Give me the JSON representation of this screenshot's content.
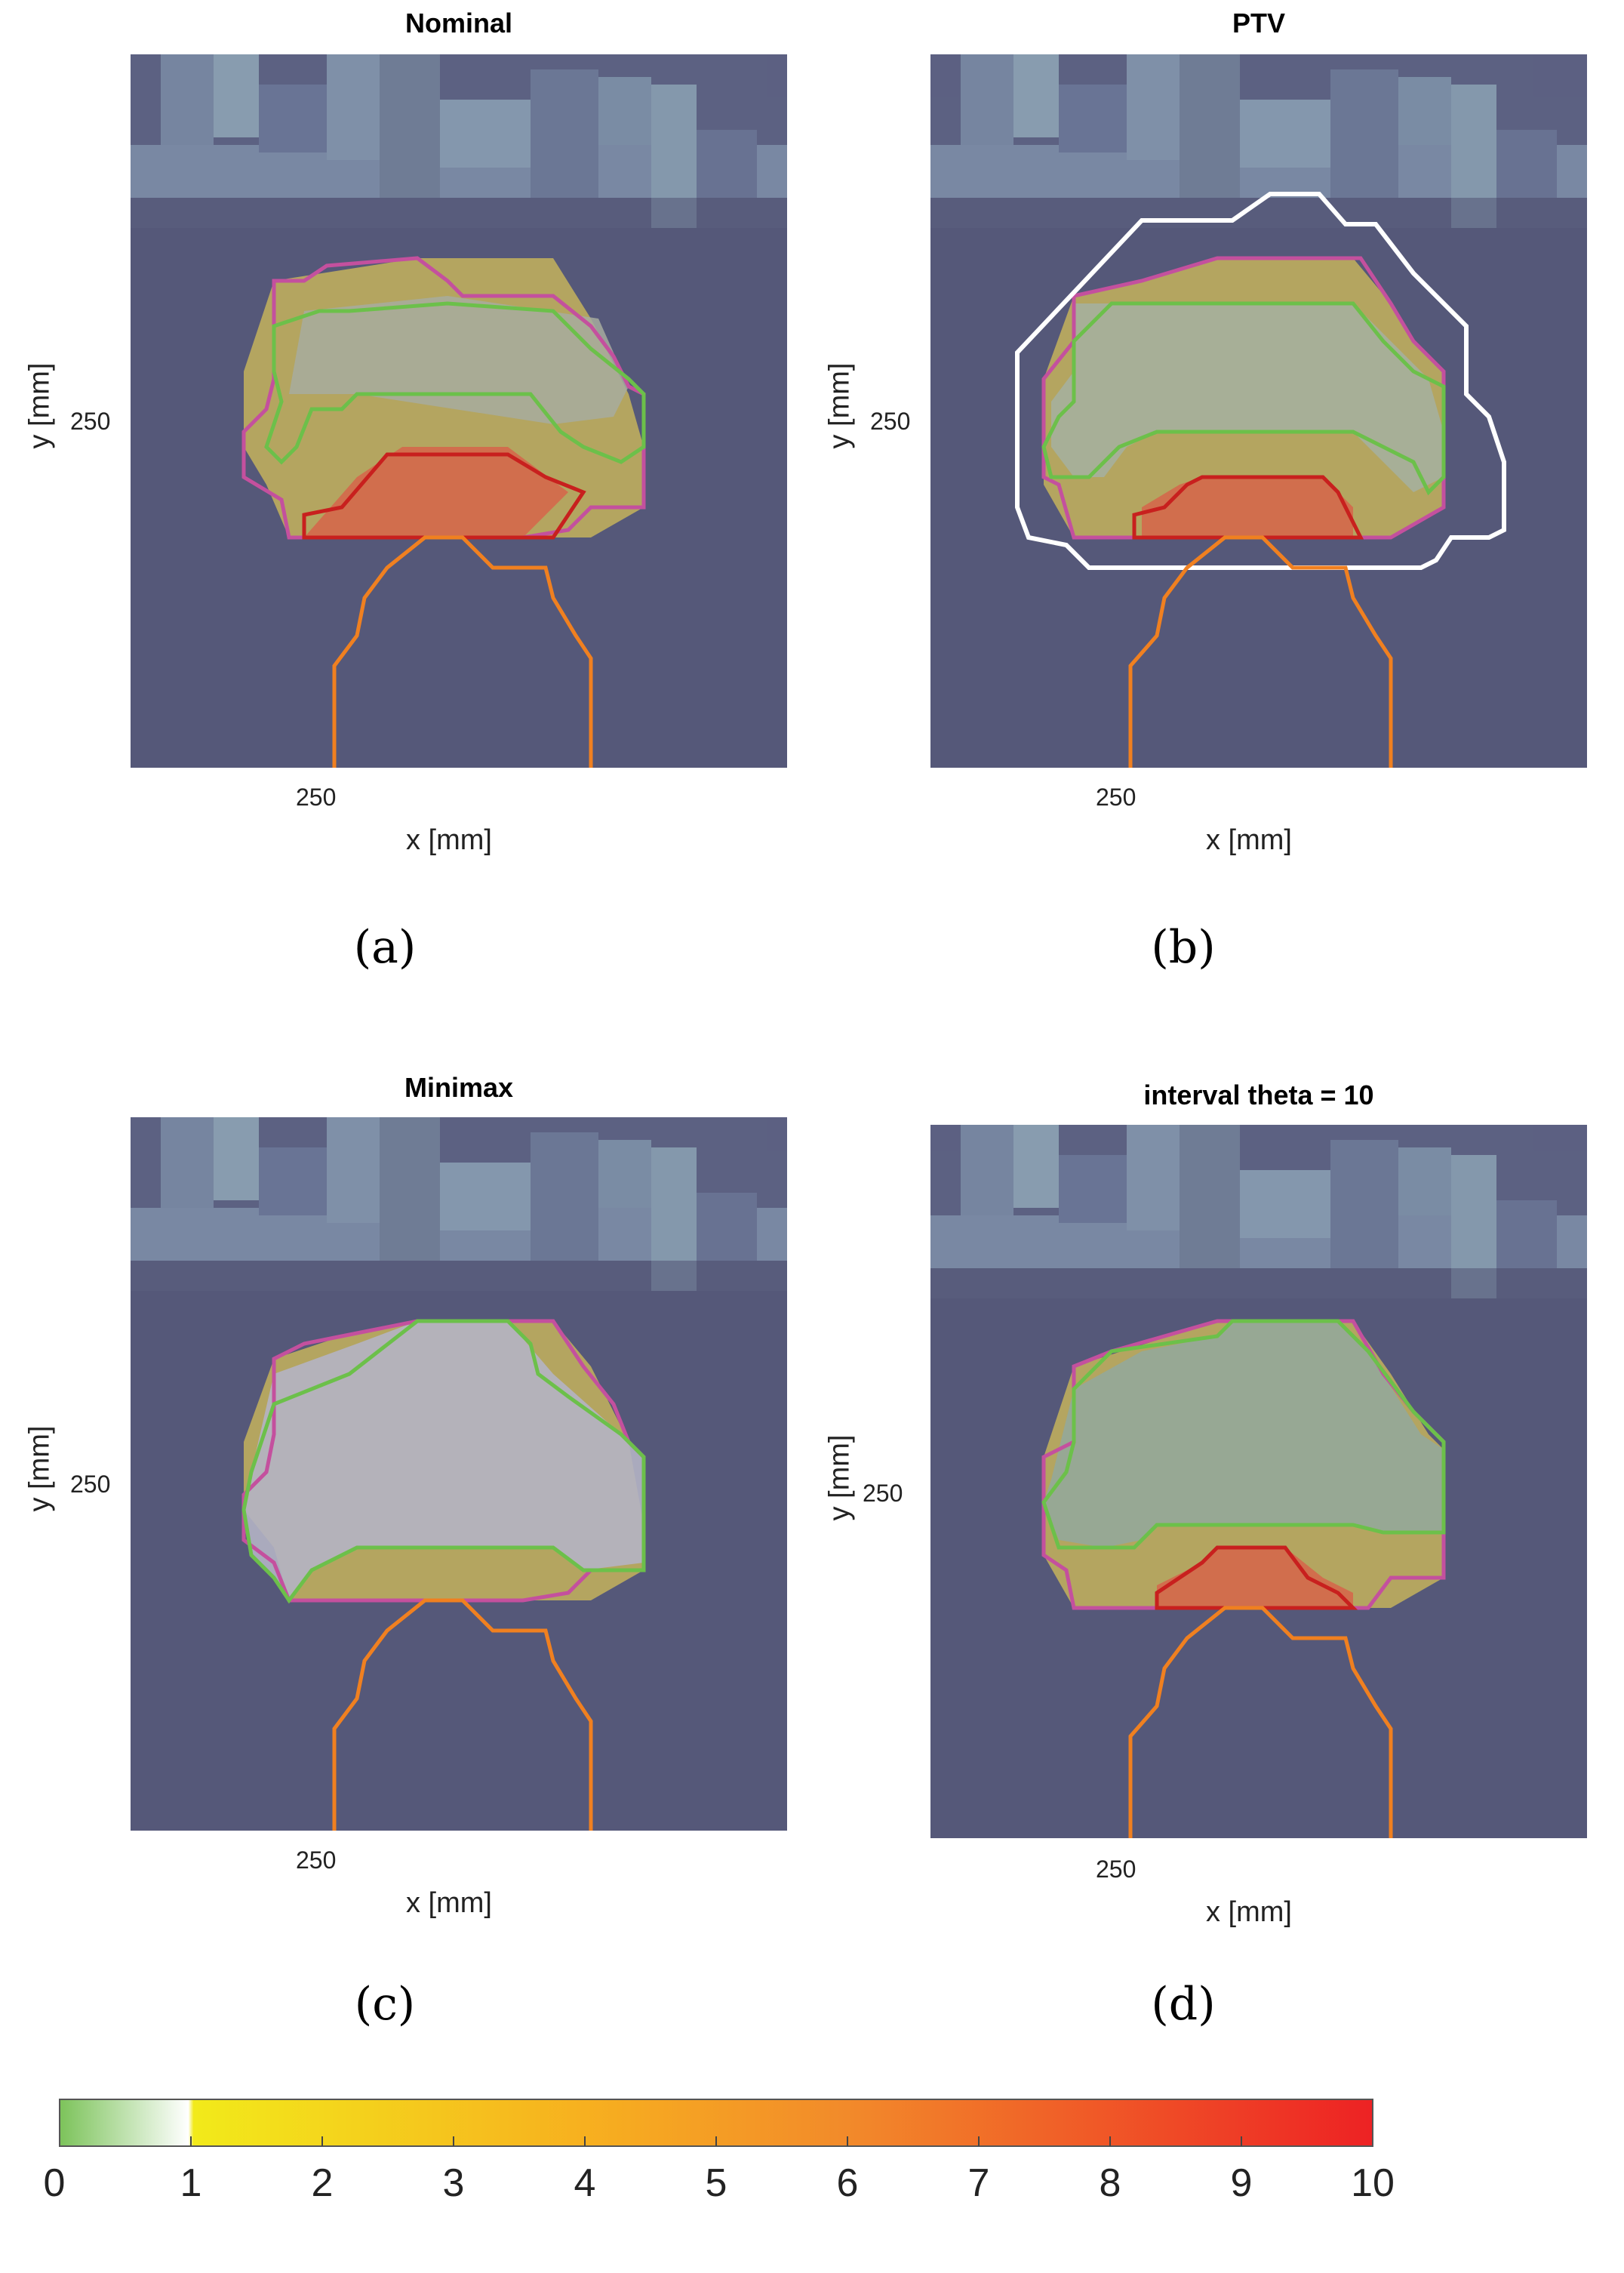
{
  "panels": [
    {
      "title": "Nominal",
      "caption": "(a)",
      "xlabel": "x [mm]",
      "ylabel": "y [mm]",
      "xtick": "250",
      "ytick": "250"
    },
    {
      "title": "PTV",
      "caption": "(b)",
      "xlabel": "x [mm]",
      "ylabel": "y [mm]",
      "xtick": "250",
      "ytick": "250"
    },
    {
      "title": "Minimax",
      "caption": "(c)",
      "xlabel": "x [mm]",
      "ylabel": "y [mm]",
      "xtick": "250",
      "ytick": "250"
    },
    {
      "title": "interval theta = 10",
      "caption": "(d)",
      "xlabel": "x [mm]",
      "ylabel": "y [mm]",
      "xtick": "250",
      "ytick": "250"
    }
  ],
  "colorbar": {
    "ticks": [
      "0",
      "1",
      "2",
      "3",
      "4",
      "5",
      "6",
      "7",
      "8",
      "9",
      "10"
    ],
    "range": [
      0,
      10
    ],
    "colors": {
      "low": "#7cc35a",
      "one": "#ffffff",
      "yellow": "#f2ea1a",
      "mid": "#f59a22",
      "high": "#ed2224"
    }
  },
  "contour_colors": {
    "target_magenta": "#c4509e",
    "green": "#6cc04a",
    "red": "#c8201e",
    "orange": "#f08020",
    "ptv_white": "#ffffff"
  }
}
